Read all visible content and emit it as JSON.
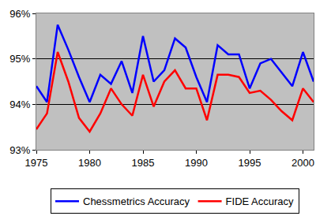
{
  "chart_data": {
    "type": "line",
    "x": [
      1975,
      1976,
      1977,
      1978,
      1979,
      1980,
      1981,
      1982,
      1983,
      1984,
      1985,
      1986,
      1987,
      1988,
      1989,
      1990,
      1991,
      1992,
      1993,
      1994,
      1995,
      1996,
      1997,
      1998,
      1999,
      2000,
      2001
    ],
    "series": [
      {
        "name": "Chessmetrics Accuracy",
        "color": "#0000ff",
        "values": [
          94.4,
          94.05,
          95.75,
          95.2,
          94.6,
          94.05,
          94.65,
          94.45,
          94.95,
          94.25,
          95.5,
          94.5,
          94.75,
          95.45,
          95.25,
          94.6,
          94.05,
          95.3,
          95.1,
          95.1,
          94.35,
          94.9,
          95.0,
          94.7,
          94.4,
          95.15,
          94.5
        ]
      },
      {
        "name": "FIDE Accuracy",
        "color": "#ff0000",
        "values": [
          93.45,
          93.8,
          95.15,
          94.5,
          93.7,
          93.4,
          93.8,
          94.35,
          94.0,
          93.75,
          94.65,
          93.95,
          94.5,
          94.75,
          94.35,
          94.35,
          93.65,
          94.65,
          94.65,
          94.6,
          94.25,
          94.3,
          94.1,
          93.85,
          93.65,
          94.35,
          94.05
        ]
      }
    ],
    "xlim": [
      1975,
      2001
    ],
    "xticks": [
      1975,
      1980,
      1985,
      1990,
      1995,
      2000
    ],
    "ylim": [
      93,
      96
    ],
    "yticks": [
      {
        "value": 93,
        "label": "93%"
      },
      {
        "value": 94,
        "label": "94%"
      },
      {
        "value": 95,
        "label": "95%"
      },
      {
        "value": 96,
        "label": "96%"
      }
    ],
    "grid": true,
    "legend": "bottom"
  }
}
